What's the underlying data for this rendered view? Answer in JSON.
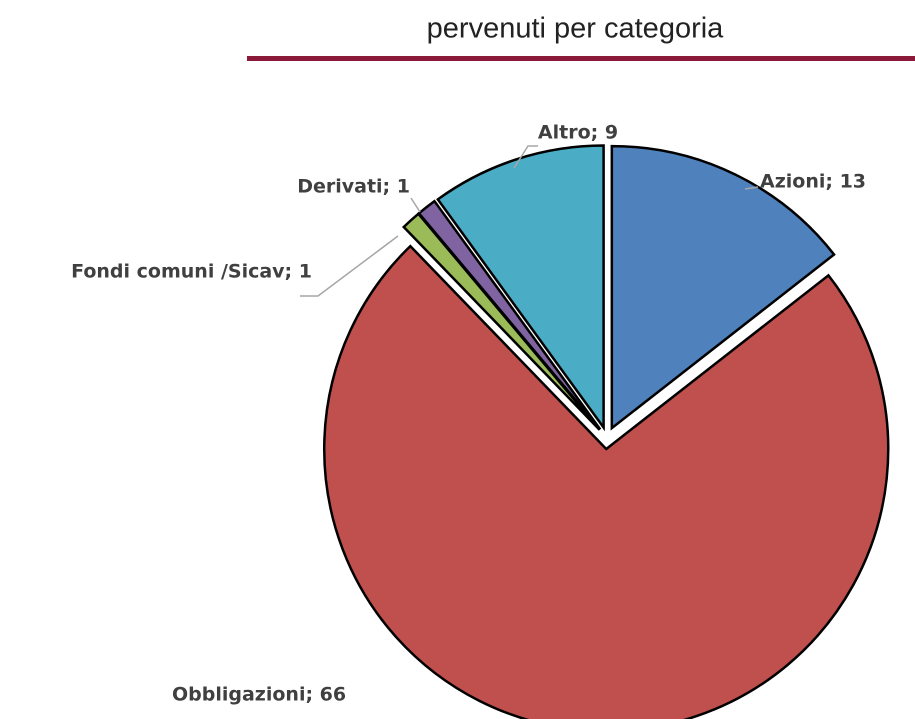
{
  "chart_data": {
    "type": "pie",
    "title": "pervenuti per categoria",
    "values": [
      13,
      66,
      1,
      1,
      9
    ],
    "value_labels": [
      "Azioni; 13",
      "Obbligazioni; 66",
      "Fondi comuni /Sicav; 1",
      "Derivati; 1",
      "Altro; 9"
    ],
    "colors": [
      "#4f81bd",
      "#c0504d",
      "#9bbb59",
      "#8064a2",
      "#4bacc6"
    ]
  }
}
